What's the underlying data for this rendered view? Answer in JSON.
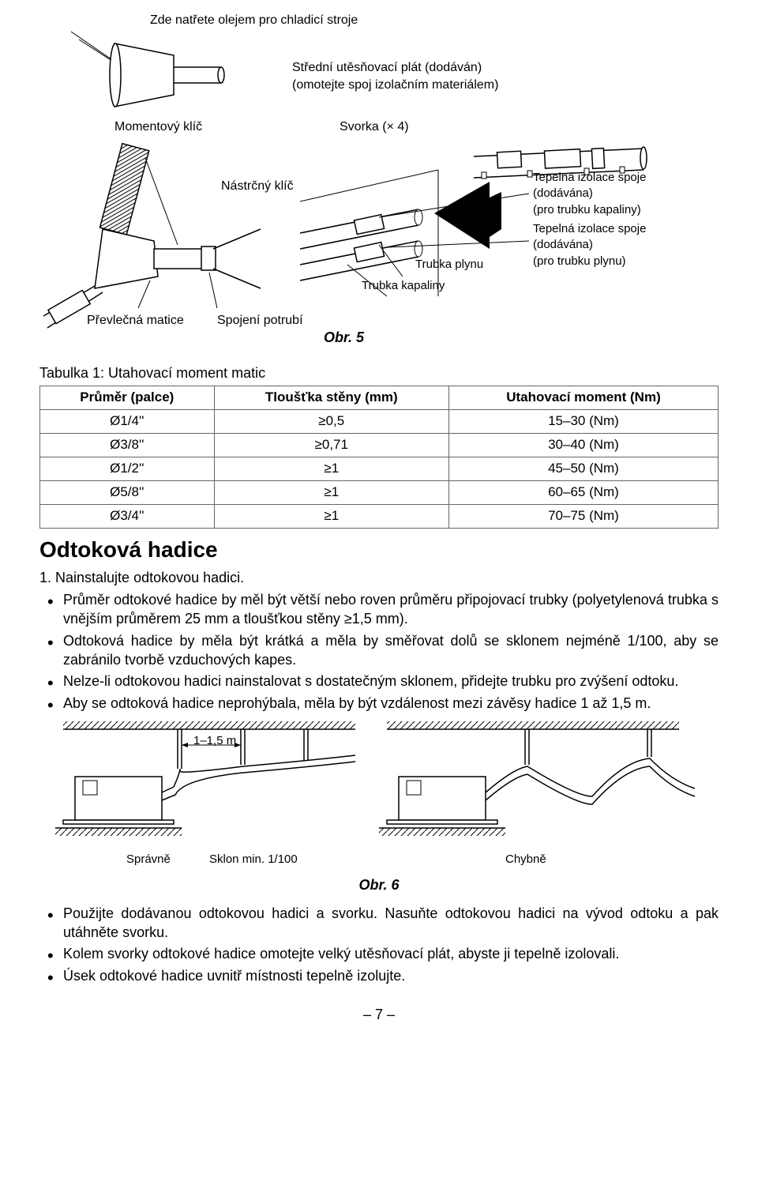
{
  "fig5": {
    "label_oil": "Zde natřete olejem pro chladicí stroje",
    "label_packing": "Střední utěsňovací plát (dodáván)\n(omotejte spoj izolačním materiálem)",
    "label_torque_wrench": "Momentový klíč",
    "label_clamp": "Svorka (× 4)",
    "label_socket_wrench": "Nástrčný klíč",
    "label_insul_liquid": "Tepelná izolace spoje\n(dodávána)\n(pro trubku kapaliny)",
    "label_insul_gas": "Tepelná izolace spoje\n(dodávána)\n(pro trubku plynu)",
    "label_gas_pipe": "Trubka plynu",
    "label_liquid_pipe": "Trubka kapaliny",
    "label_flare_nut": "Převlečná matice",
    "label_pipe_joint": "Spojení potrubí",
    "caption": "Obr. 5"
  },
  "table1": {
    "caption": "Tabulka 1: Utahovací moment matic",
    "headers": [
      "Průměr (palce)",
      "Tloušťka stěny (mm)",
      "Utahovací moment (Nm)"
    ],
    "rows": [
      [
        "Ø1/4''",
        "≥0,5",
        "15–30 (Nm)"
      ],
      [
        "Ø3/8''",
        "≥0,71",
        "30–40 (Nm)"
      ],
      [
        "Ø1/2''",
        "≥1",
        "45–50 (Nm)"
      ],
      [
        "Ø5/8''",
        "≥1",
        "60–65 (Nm)"
      ],
      [
        "Ø3/4''",
        "≥1",
        "70–75 (Nm)"
      ]
    ]
  },
  "section": {
    "heading": "Odtoková hadice",
    "step1": "1. Nainstalujte odtokovou hadici.",
    "bullets1": [
      "Průměr odtokové hadice by měl být větší nebo roven průměru připojovací trubky (polyetylenová trubka s vnějším průměrem 25 mm a tloušťkou stěny ≥1,5 mm).",
      "Odtoková hadice by měla být krátká a měla by směřovat dolů se sklonem nejméně 1/100, aby se zabránilo tvorbě vzduchových kapes.",
      "Nelze-li odtokovou hadici nainstalovat s dostatečným sklonem, přidejte trubku pro zvýšení odtoku.",
      "Aby se odtoková hadice neprohýbala, měla by být vzdálenost mezi závěsy hadice 1 až 1,5 m."
    ],
    "bullets2": [
      "Použijte dodávanou odtokovou hadici a svorku. Nasuňte odtokovou hadici na vývod odtoku a pak utáhněte svorku.",
      "Kolem svorky odtokové hadice omotejte velký utěsňovací plát, abyste ji tepelně izolovali.",
      "Úsek odtokové hadice uvnitř místnosti tepelně izolujte."
    ]
  },
  "fig6": {
    "label_distance": "1–1,5 m",
    "label_correct": "Správně",
    "label_slope": "Sklon min. 1/100",
    "label_wrong": "Chybně",
    "caption": "Obr. 6"
  },
  "page_number": "– 7 –"
}
